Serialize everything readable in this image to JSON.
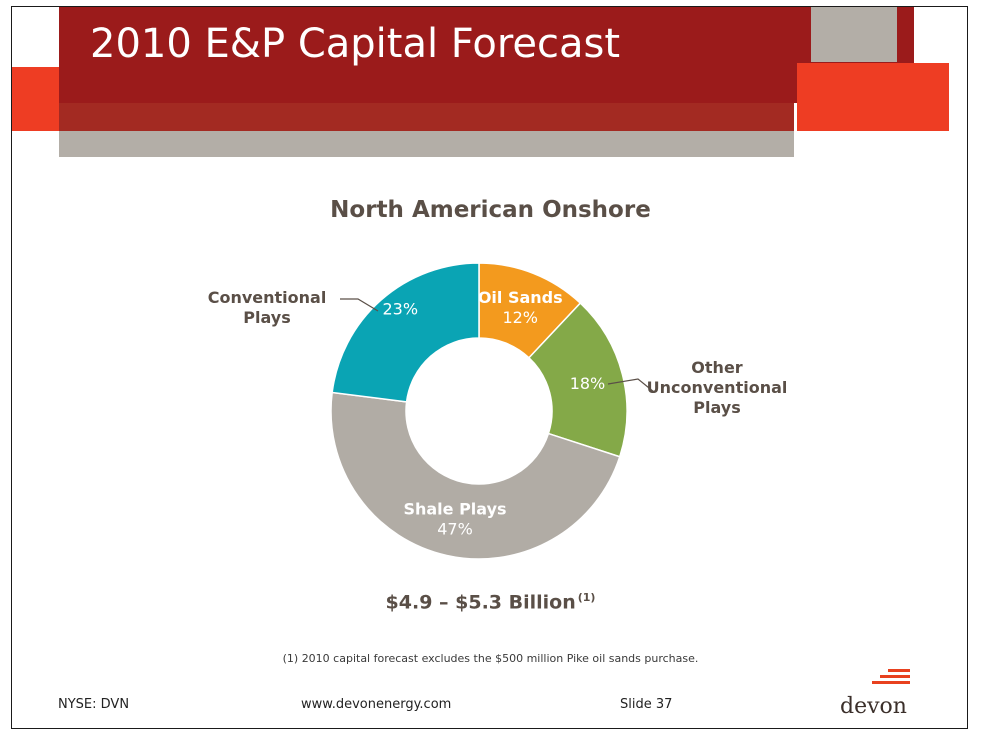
{
  "slide": {
    "title": "2010 E&P Capital Forecast",
    "total_label": "$4.9 – $5.3 Billion",
    "total_note_ref": "(1)",
    "footnote": "(1) 2010 capital forecast excludes the $500 million Pike oil sands purchase.",
    "footer": {
      "ticker": "NYSE: DVN",
      "website": "www.devonenergy.com",
      "slide_number": "Slide 37"
    },
    "logo_text": "devon"
  },
  "colors": {
    "title_band": "#9b1b1b",
    "accent_orange": "#ee3d23",
    "accent_gray": "#b3aea7"
  },
  "chart_data": {
    "type": "pie",
    "title": "North American Onshore",
    "donut": true,
    "slices": [
      {
        "label": "Oil Sands",
        "value": 12,
        "display": "12%",
        "color": "#f39a1e"
      },
      {
        "label": "Other Unconventional Plays",
        "value": 18,
        "display": "18%",
        "color": "#84a948"
      },
      {
        "label": "Shale Plays",
        "value": 47,
        "display": "47%",
        "color": "#b1aca5"
      },
      {
        "label": "Conventional Plays",
        "value": 23,
        "display": "23%",
        "color": "#0aa4b4"
      }
    ]
  }
}
